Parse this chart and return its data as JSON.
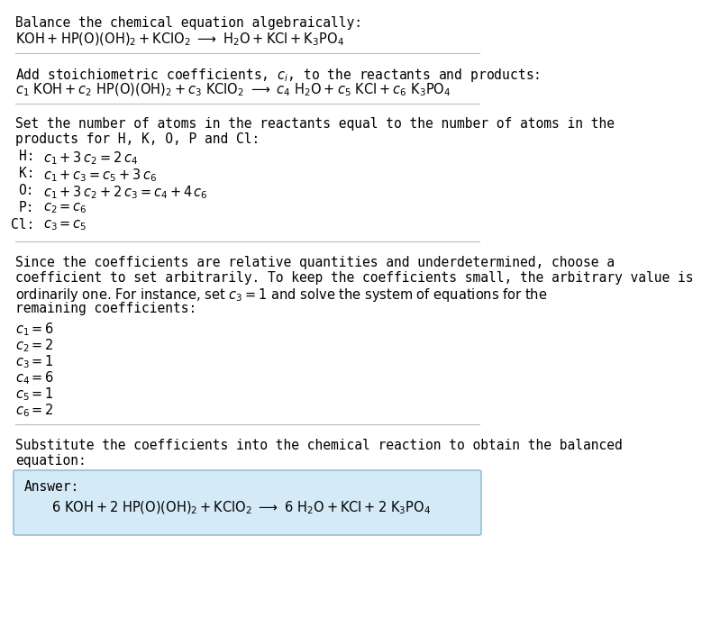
{
  "bg_color": "#ffffff",
  "text_color": "#000000",
  "answer_box_color": "#d4eaf7",
  "answer_box_edge": "#8ab4cc",
  "fontsize": 10.5,
  "font": "DejaVu Sans Mono",
  "sections": {
    "line1_text": "Balance the chemical equation algebraically:",
    "line2_eq": "KOH + HP(O)(OH)_2 + KClO_2  →  H_2O + KCl + K_3PO_4",
    "line3_text": "Add stoichiometric coefficients, c_i, to the reactants and products:",
    "line4_eq": "c_1 KOH + c_2 HP(O)(OH)_2 + c_3 KClO_2  →  c_4 H_2O + c_5 KCl + c_6 K_3PO_4",
    "line5_text1": "Set the number of atoms in the reactants equal to the number of atoms in the",
    "line5_text2": "products for H, K, O, P and Cl:",
    "equations": [
      [
        "H:",
        "c_1 + 3 c_2 = 2 c_4"
      ],
      [
        "K:",
        "c_1 + c_3 = c_5 + 3 c_6"
      ],
      [
        "O:",
        "c_1 + 3 c_2 + 2 c_3 = c_4 + 4 c_6"
      ],
      [
        "P:",
        "c_2 = c_6"
      ],
      [
        "Cl:",
        "c_3 = c_5"
      ]
    ],
    "para_lines": [
      "Since the coefficients are relative quantities and underdetermined, choose a",
      "coefficient to set arbitrarily. To keep the coefficients small, the arbitrary value is",
      "ordinarily one. For instance, set c_3 = 1 and solve the system of equations for the",
      "remaining coefficients:"
    ],
    "coeffs": [
      "c_1 = 6",
      "c_2 = 2",
      "c_3 = 1",
      "c_4 = 6",
      "c_5 = 1",
      "c_6 = 2"
    ],
    "final_text1": "Substitute the coefficients into the chemical reaction to obtain the balanced",
    "final_text2": "equation:",
    "answer_label": "Answer:",
    "answer_eq": "6 KOH + 2 HP(O)(OH)_2 + KClO_2  →  6 H_2O + KCl + 2 K_3PO_4"
  }
}
